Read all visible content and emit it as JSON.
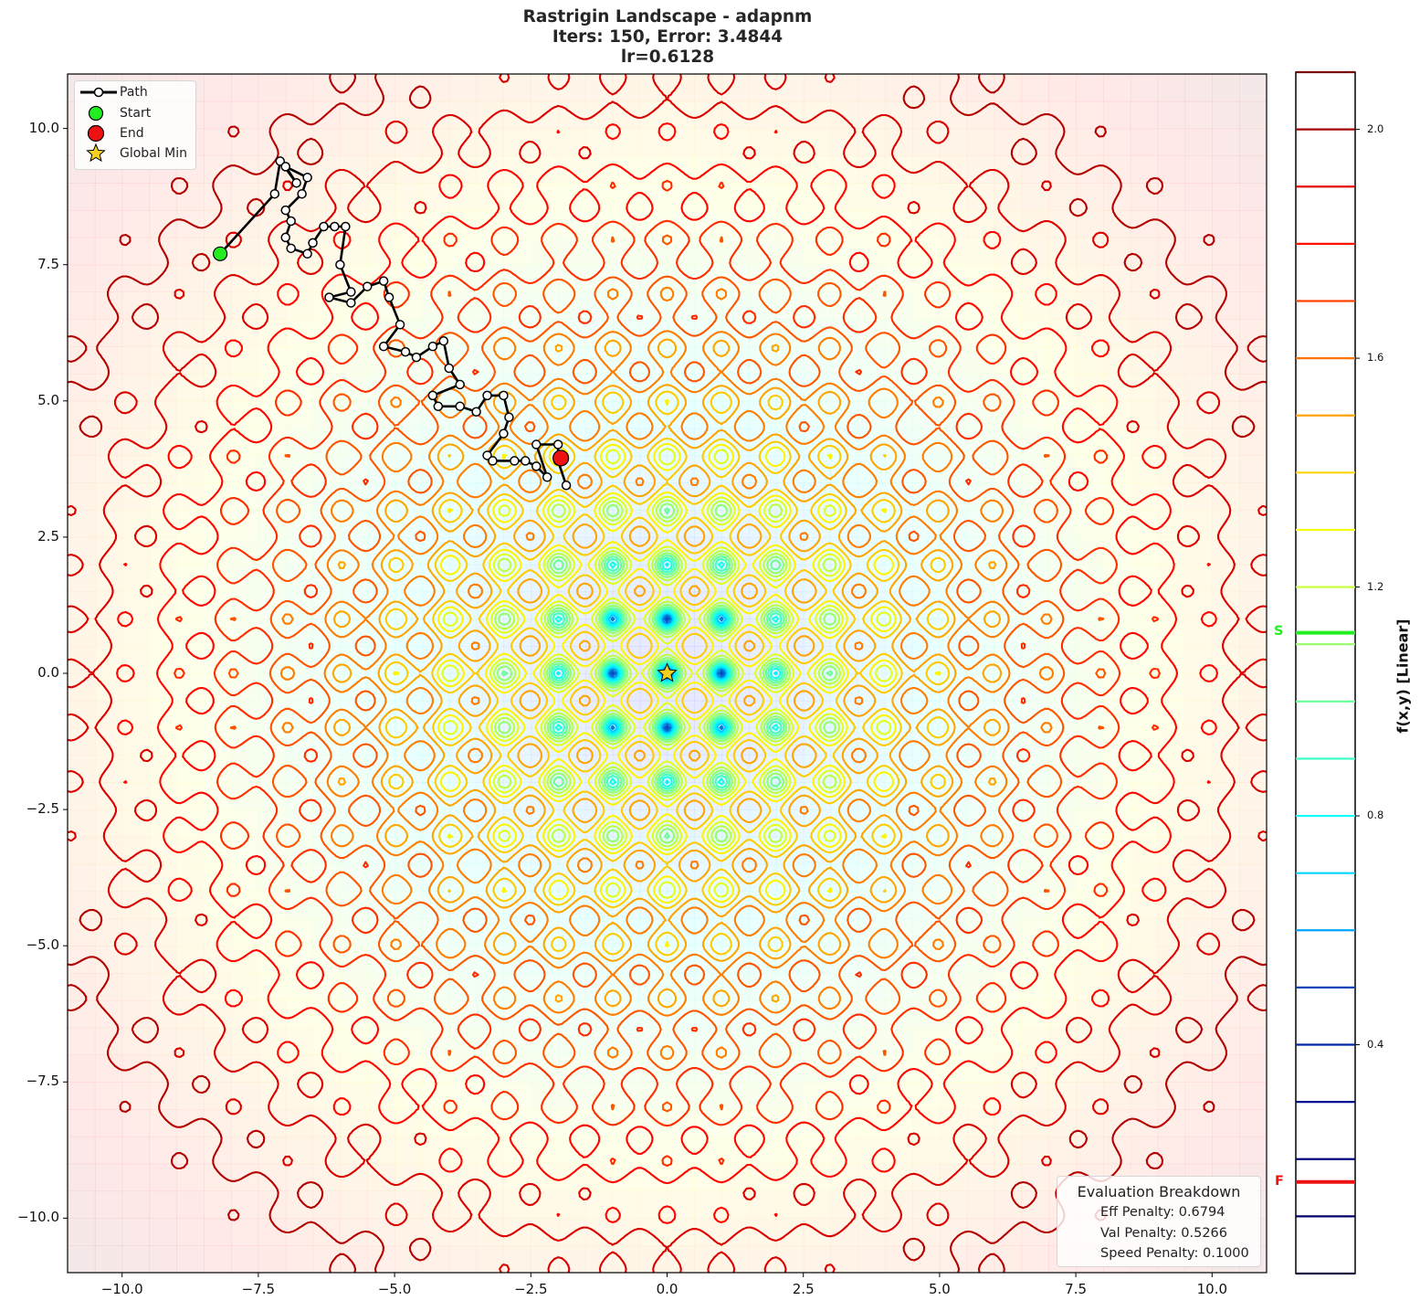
{
  "chart_data": {
    "type": "contour",
    "function": "Rastrigin",
    "title_lines": [
      "Rastrigin Landscape - adapnm",
      "Iters: 150, Error: 3.4844",
      "lr=0.6128"
    ],
    "optimizer": "adapnm",
    "iterations": 150,
    "error": 3.4844,
    "lr": 0.6128,
    "xlabel": "",
    "ylabel": "",
    "xlim": [
      -11,
      11
    ],
    "ylim": [
      -11,
      11
    ],
    "x_ticks": [
      -10.0,
      -7.5,
      -5.0,
      -2.5,
      0.0,
      2.5,
      5.0,
      7.5,
      10.0
    ],
    "x_tick_labels": [
      "−10.0",
      "−7.5",
      "−5.0",
      "−2.5",
      "0.0",
      "2.5",
      "5.0",
      "7.5",
      "10.0"
    ],
    "y_ticks": [
      10.0,
      7.5,
      5.0,
      2.5,
      0.0,
      -2.5,
      -5.0,
      -7.5,
      -10.0
    ],
    "y_tick_labels": [
      "10.0",
      "7.5",
      "5.0",
      "2.5",
      "0.0",
      "−2.5",
      "−5.0",
      "−7.5",
      "−10.0"
    ],
    "grid": false,
    "legend": {
      "position": "upper left",
      "entries": [
        {
          "label": "Path",
          "marker": "line-with-white-circle",
          "color": "#000000"
        },
        {
          "label": "Start",
          "marker": "circle",
          "color": "#22ee22"
        },
        {
          "label": "End",
          "marker": "circle",
          "color": "#ee1111"
        },
        {
          "label": "Global Min",
          "marker": "star",
          "color": "#f5d020"
        }
      ]
    },
    "start_point": [
      -8.2,
      7.7
    ],
    "end_point": [
      -1.95,
      3.95
    ],
    "global_min": [
      0.0,
      0.0
    ],
    "path_sample": [
      [
        -8.2,
        7.7
      ],
      [
        -7.2,
        8.8
      ],
      [
        -7.1,
        9.4
      ],
      [
        -6.8,
        9.0
      ],
      [
        -7.0,
        9.3
      ],
      [
        -6.6,
        9.1
      ],
      [
        -6.7,
        8.8
      ],
      [
        -7.0,
        8.5
      ],
      [
        -6.9,
        8.3
      ],
      [
        -7.0,
        8.0
      ],
      [
        -6.9,
        7.8
      ],
      [
        -6.6,
        7.7
      ],
      [
        -6.5,
        7.9
      ],
      [
        -6.3,
        8.2
      ],
      [
        -6.1,
        8.2
      ],
      [
        -5.9,
        8.2
      ],
      [
        -6.0,
        7.5
      ],
      [
        -5.8,
        7.0
      ],
      [
        -6.2,
        6.9
      ],
      [
        -5.8,
        6.8
      ],
      [
        -5.5,
        7.1
      ],
      [
        -5.2,
        7.2
      ],
      [
        -5.1,
        6.9
      ],
      [
        -4.9,
        6.4
      ],
      [
        -5.2,
        6.0
      ],
      [
        -4.8,
        5.9
      ],
      [
        -4.6,
        5.8
      ],
      [
        -4.3,
        6.0
      ],
      [
        -4.1,
        6.1
      ],
      [
        -4.0,
        5.6
      ],
      [
        -3.8,
        5.3
      ],
      [
        -4.3,
        5.1
      ],
      [
        -4.2,
        4.9
      ],
      [
        -3.8,
        4.9
      ],
      [
        -3.5,
        4.8
      ],
      [
        -3.3,
        5.1
      ],
      [
        -3.0,
        5.1
      ],
      [
        -2.9,
        4.7
      ],
      [
        -3.0,
        4.4
      ],
      [
        -3.3,
        4.0
      ],
      [
        -3.2,
        3.9
      ],
      [
        -2.8,
        3.9
      ],
      [
        -2.6,
        3.9
      ],
      [
        -2.4,
        3.8
      ],
      [
        -2.2,
        3.6
      ],
      [
        -2.4,
        4.2
      ],
      [
        -2.0,
        4.2
      ],
      [
        -2.0,
        3.9
      ],
      [
        -1.85,
        3.45
      ]
    ],
    "colorbar": {
      "label": "f(x,y) [Linear]",
      "range": [
        0.0,
        2.1
      ],
      "ticks": [
        2.0,
        1.6,
        1.2,
        0.8,
        0.4
      ],
      "tick_labels": [
        "2.0",
        "1.6",
        "1.2",
        "0.8",
        "0.4"
      ],
      "levels": [
        2.1,
        2.0,
        1.9,
        1.8,
        1.7,
        1.6,
        1.5,
        1.4,
        1.3,
        1.2,
        1.1,
        1.0,
        0.9,
        0.8,
        0.7,
        0.6,
        0.5,
        0.4,
        0.3,
        0.2,
        0.1,
        0.0
      ],
      "start_marker": {
        "label": "S",
        "value": 1.12,
        "color": "#22ee22"
      },
      "final_marker": {
        "label": "F",
        "value": 0.16,
        "color": "#ee1111"
      }
    },
    "evaluation_breakdown": {
      "title": "Evaluation Breakdown",
      "eff_penalty": 0.6794,
      "val_penalty": 0.5266,
      "speed_penalty": 0.1
    }
  },
  "header": {
    "line1": "Rastrigin Landscape - adapnm",
    "line2": "Iters: 150, Error: 3.4844",
    "line3": "lr=0.6128"
  },
  "legend": {
    "path": "Path",
    "start": "Start",
    "end": "End",
    "global_min": "Global Min"
  },
  "eval": {
    "title": "Evaluation Breakdown",
    "eff": "Eff Penalty: 0.6794",
    "val": "Val Penalty: 0.5266",
    "speed": "Speed Penalty: 0.1000"
  },
  "colorbar": {
    "label": "f(x,y) [Linear]",
    "s_label": "S",
    "f_label": "F"
  },
  "colors": {
    "start": "#22ee22",
    "end": "#ee1111",
    "star": "#f5d020",
    "path": "#000000"
  }
}
